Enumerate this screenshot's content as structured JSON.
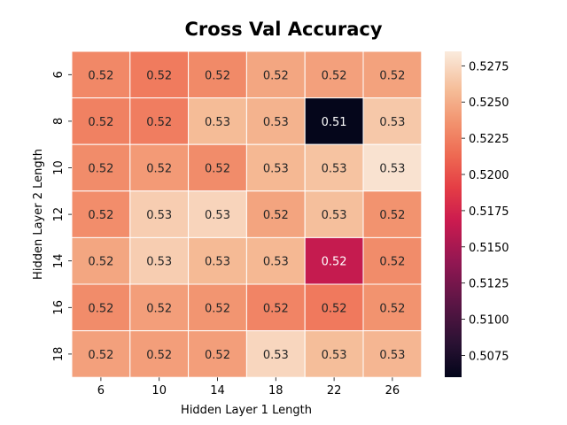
{
  "chart_data": {
    "type": "heatmap",
    "title": "Cross Val Accuracy",
    "xlabel": "Hidden Layer 1 Length",
    "ylabel": "Hidden Layer 2 Length",
    "x_categories": [
      "6",
      "10",
      "14",
      "18",
      "22",
      "26"
    ],
    "y_categories": [
      "6",
      "8",
      "10",
      "12",
      "14",
      "16",
      "18"
    ],
    "values": [
      [
        0.523,
        0.5223,
        0.5231,
        0.5246,
        0.5243,
        0.5244
      ],
      [
        0.5226,
        0.5224,
        0.5258,
        0.5253,
        0.5061,
        0.5265
      ],
      [
        0.5232,
        0.524,
        0.5232,
        0.5256,
        0.5262,
        0.528
      ],
      [
        0.5233,
        0.5268,
        0.5272,
        0.5245,
        0.526,
        0.5236
      ],
      [
        0.5246,
        0.5268,
        0.5257,
        0.5256,
        0.5165,
        0.5232
      ],
      [
        0.5232,
        0.5242,
        0.5237,
        0.5228,
        0.5222,
        0.5236
      ],
      [
        0.5243,
        0.5242,
        0.5242,
        0.5273,
        0.5259,
        0.5255
      ]
    ],
    "cell_labels": [
      [
        "0.52",
        "0.52",
        "0.52",
        "0.52",
        "0.52",
        "0.52"
      ],
      [
        "0.52",
        "0.52",
        "0.53",
        "0.53",
        "0.51",
        "0.53"
      ],
      [
        "0.52",
        "0.52",
        "0.52",
        "0.53",
        "0.53",
        "0.53"
      ],
      [
        "0.52",
        "0.53",
        "0.53",
        "0.52",
        "0.53",
        "0.52"
      ],
      [
        "0.52",
        "0.53",
        "0.53",
        "0.53",
        "0.52",
        "0.52"
      ],
      [
        "0.52",
        "0.52",
        "0.52",
        "0.52",
        "0.52",
        "0.52"
      ],
      [
        "0.52",
        "0.52",
        "0.52",
        "0.53",
        "0.53",
        "0.53"
      ]
    ],
    "colorbar": {
      "vmin": 0.506,
      "vmax": 0.5285,
      "ticks": [
        0.5075,
        0.51,
        0.5125,
        0.515,
        0.5175,
        0.52,
        0.5225,
        0.525,
        0.5275
      ],
      "tick_labels": [
        "0.5075",
        "0.5100",
        "0.5125",
        "0.5150",
        "0.5175",
        "0.5200",
        "0.5225",
        "0.5250",
        "0.5275"
      ],
      "colormap": "rocket"
    },
    "grid": false,
    "legend": "colorbar-right"
  }
}
